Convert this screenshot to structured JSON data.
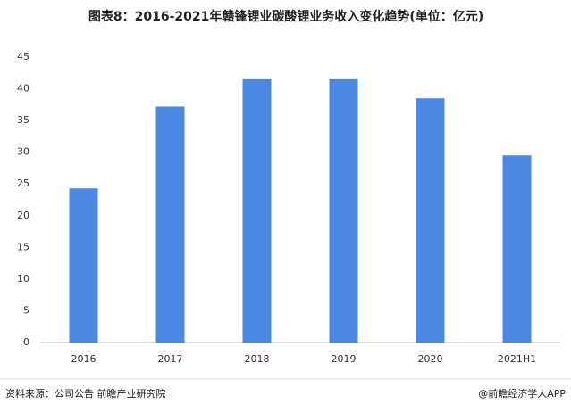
{
  "chart_data": {
    "type": "bar",
    "title": "图表8：2016-2021年赣锋锂业碳酸锂业务收入变化趋势(单位：亿元)",
    "categories": [
      "2016",
      "2017",
      "2018",
      "2019",
      "2020",
      "2021H1"
    ],
    "values": [
      24.3,
      37.2,
      41.5,
      41.5,
      38.5,
      29.5
    ],
    "color": "#4a88e2",
    "ylim": [
      0,
      45
    ],
    "yticks": [
      0,
      5,
      10,
      15,
      20,
      25,
      30,
      35,
      40,
      45
    ],
    "grid": false
  },
  "footer": {
    "source": "资料来源：公司公告 前瞻产业研究院",
    "credit": "@前瞻经济学人APP"
  }
}
